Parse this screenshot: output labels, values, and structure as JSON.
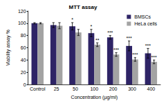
{
  "chart_data": {
    "type": "bar",
    "title": "MTT assay",
    "x_label": "Concentration (µg/ml)",
    "y_label": "Viability assay %",
    "categories": [
      "Control",
      "25",
      "50",
      "100",
      "200",
      "300",
      "400"
    ],
    "series": [
      {
        "name": "BMSCs",
        "color": "#2e2466",
        "values": [
          100,
          97,
          95,
          84,
          77,
          63,
          51
        ],
        "errors": [
          1,
          4,
          6,
          6,
          3,
          8,
          8
        ],
        "significance": [
          null,
          null,
          "*",
          "*",
          "***",
          "***",
          "***"
        ]
      },
      {
        "name": "HeLa cells",
        "color": "#a3a3a3",
        "values": [
          100,
          96,
          85,
          65,
          49,
          41,
          37
        ],
        "errors": [
          1,
          5,
          5,
          3,
          3,
          3,
          3
        ],
        "significance": [
          null,
          null,
          null,
          "**",
          "***",
          "***",
          "***"
        ]
      }
    ],
    "ylim": [
      0,
      120
    ],
    "yticks": [
      0,
      20,
      40,
      60,
      80,
      100,
      120
    ],
    "grid": false,
    "legend": "top-right"
  }
}
